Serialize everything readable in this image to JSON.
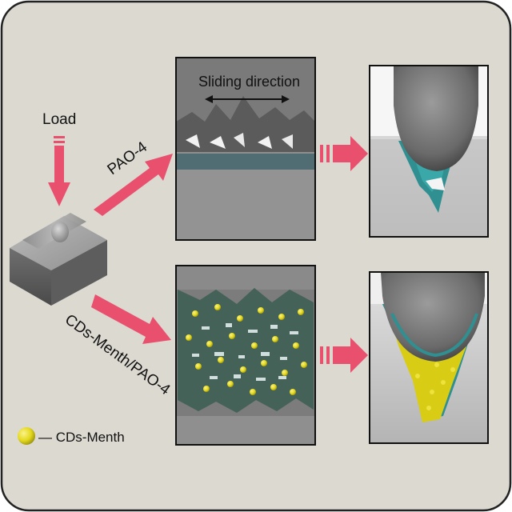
{
  "labels": {
    "load": "Load",
    "sliding_direction": "Sliding direction",
    "pao4": "PAO-4",
    "cds_menth_pao4": "CDs-Menth/PAO-4",
    "legend": "— CDs-Menth"
  },
  "colors": {
    "panel_background": "#dcd9d1",
    "arrow": "#e8506e",
    "film_teal": "#3aa7a8",
    "particle_yellow": "#e3d81c",
    "surface_gray": "#9a9a9a"
  },
  "icons": [
    "down-arrow-icon",
    "right-arrow-icon",
    "particle-icon"
  ]
}
